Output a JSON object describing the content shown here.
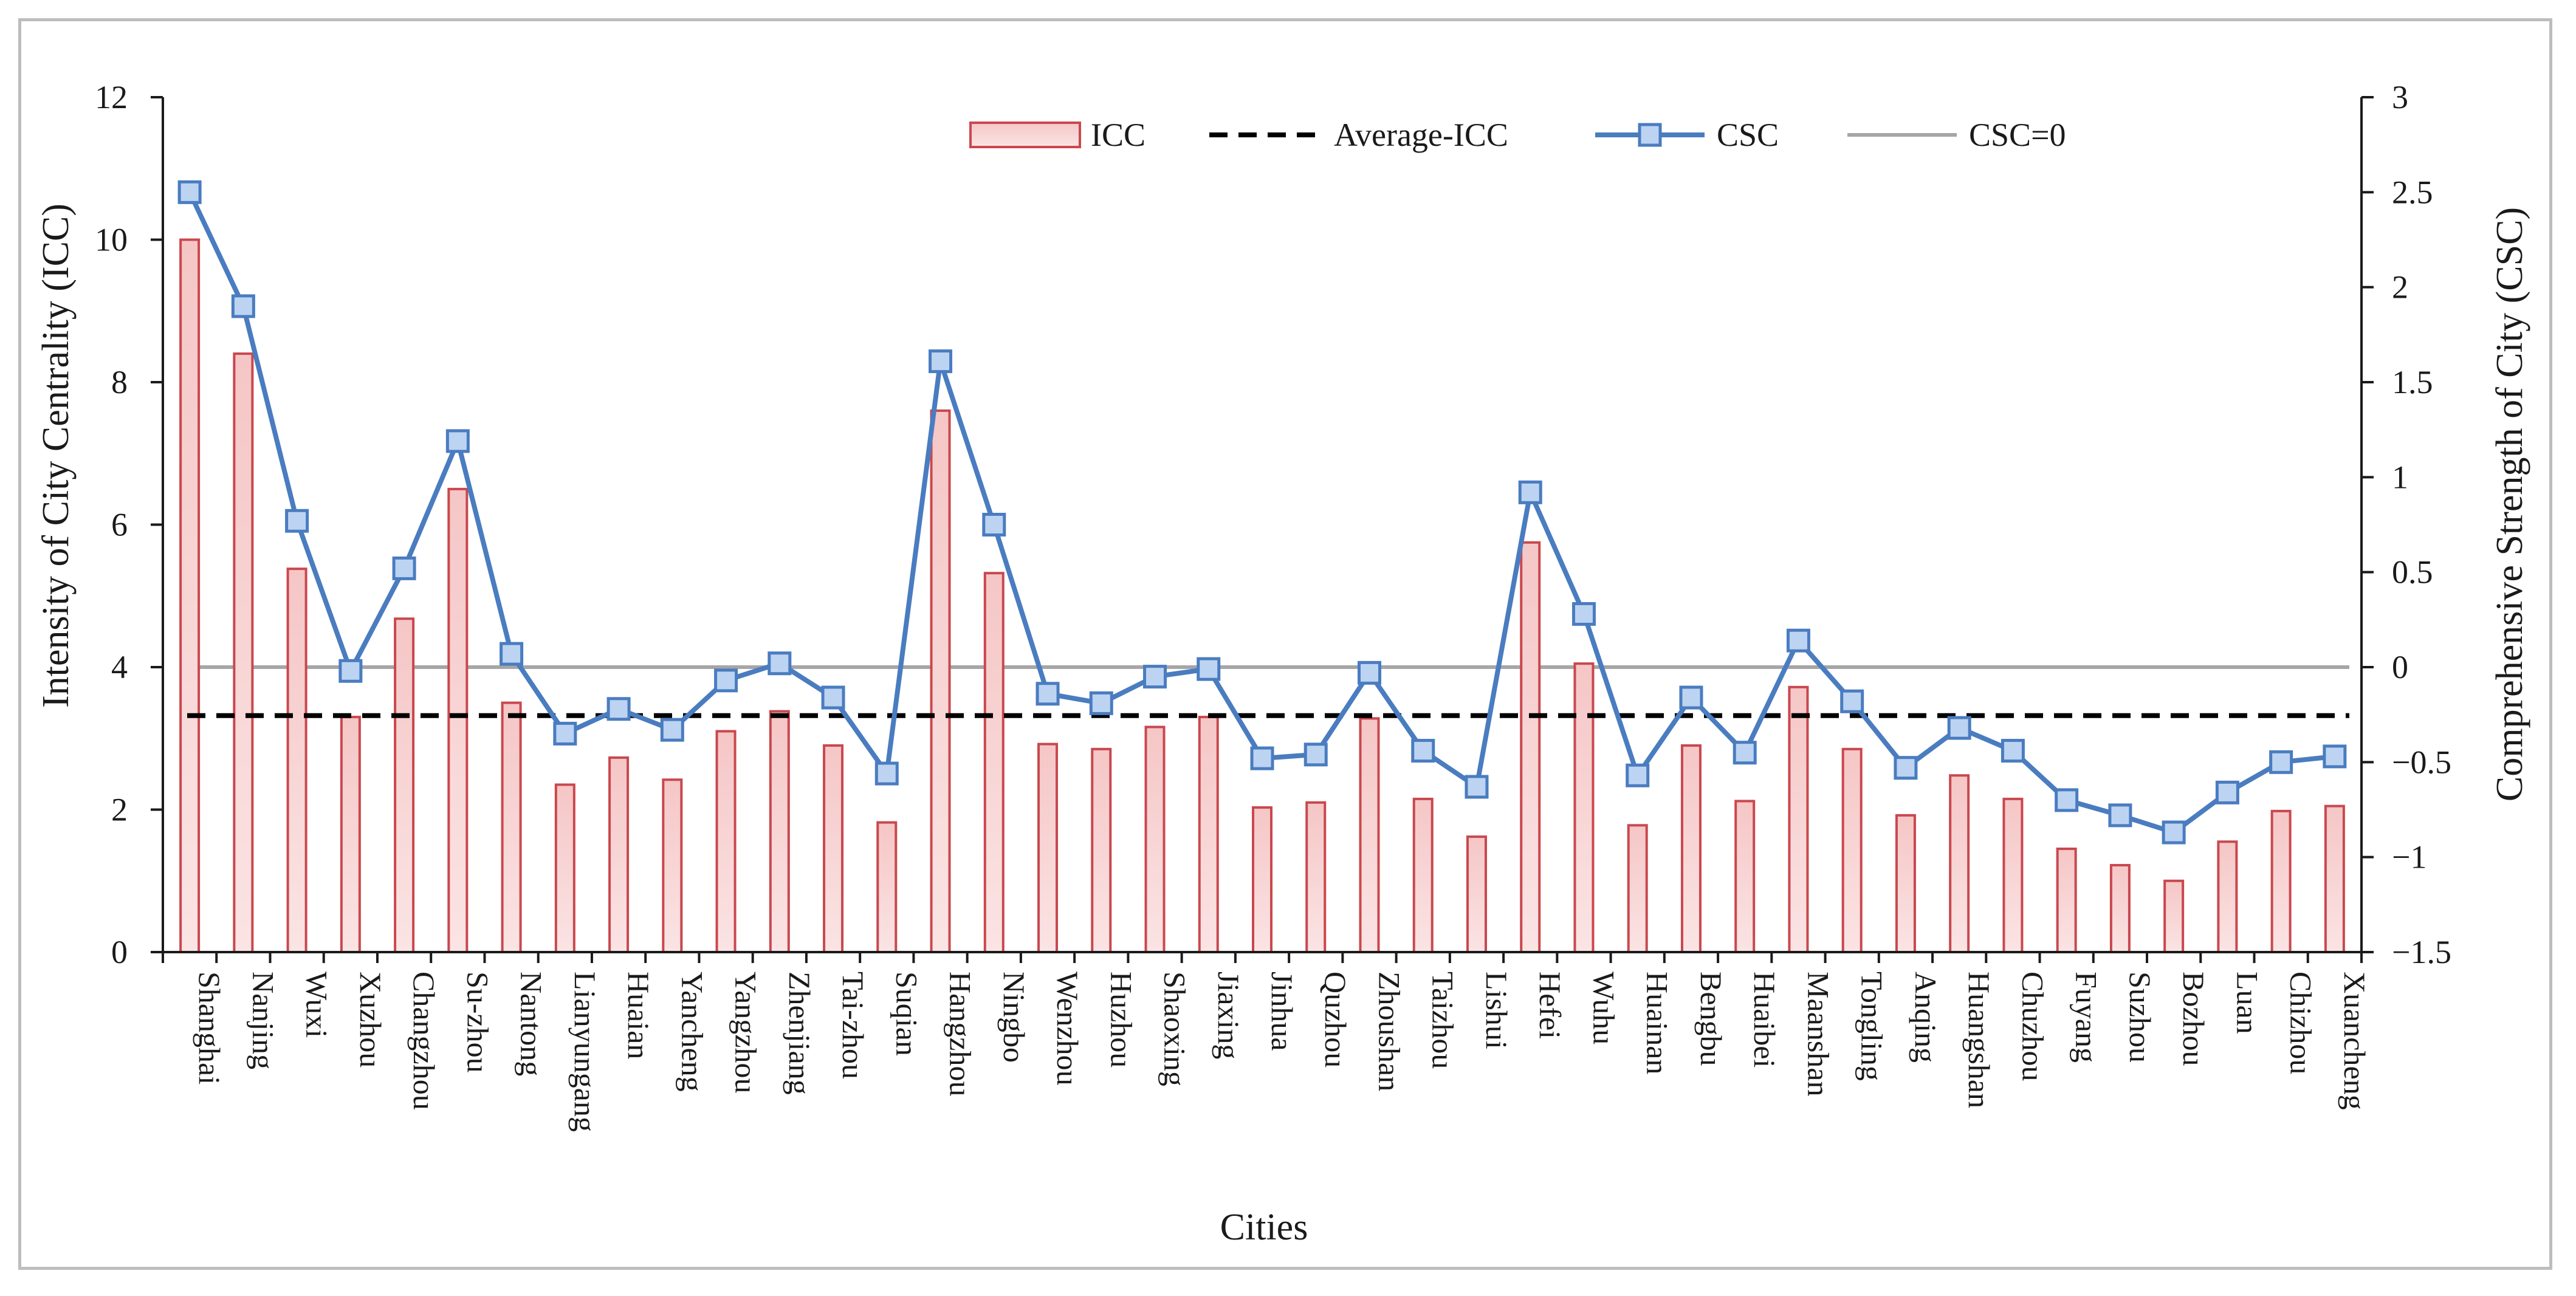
{
  "chart_data": {
    "type": "bar",
    "xlabel": "Cities",
    "ylabel": "Intensity of City Centrality (ICC)",
    "y2label": "Comprehensive Strength of City (CSC)",
    "ylim": [
      0,
      12
    ],
    "y2lim": [
      -1.5,
      3
    ],
    "yticks": [
      "0",
      "2",
      "4",
      "6",
      "8",
      "10",
      "12"
    ],
    "y2ticks": [
      "−1.5",
      "−1",
      "−0.5",
      "0",
      "0.5",
      "1",
      "1.5",
      "2",
      "2.5",
      "3"
    ],
    "y2tick_values": [
      -1.5,
      -1,
      -0.5,
      0,
      0.5,
      1,
      1.5,
      2,
      2.5,
      3
    ],
    "categories": [
      "Shanghai",
      "Nanjing",
      "Wuxi",
      "Xuzhou",
      "Changzhou",
      "Su-zhou",
      "Nantong",
      "Lianyungang",
      "Huaian",
      "Yancheng",
      "Yangzhou",
      "Zhenjiang",
      "Tai-zhou",
      "Suqian",
      "Hangzhou",
      "Ningbo",
      "Wenzhou",
      "Huzhou",
      "Shaoxing",
      "Jiaxing",
      "Jinhua",
      "Quzhou",
      "Zhoushan",
      "Taizhou",
      "Lishui",
      "Hefei",
      "Wuhu",
      "Huainan",
      "Bengbu",
      "Huaibei",
      "Maanshan",
      "Tongling",
      "Anqing",
      "Huangshan",
      "Chuzhou",
      "Fuyang",
      "Suzhou",
      "Bozhou",
      "Luan",
      "Chizhou",
      "Xuancheng"
    ],
    "series": [
      {
        "name": "ICC",
        "type": "bar",
        "axis": "left",
        "values": [
          10.0,
          8.4,
          5.38,
          3.3,
          4.68,
          6.5,
          3.5,
          2.35,
          2.73,
          2.42,
          3.1,
          3.38,
          2.9,
          1.82,
          7.6,
          5.32,
          2.92,
          2.85,
          3.16,
          3.3,
          2.03,
          2.1,
          3.28,
          2.15,
          1.62,
          5.75,
          4.05,
          1.78,
          2.9,
          2.12,
          3.72,
          2.85,
          1.92,
          2.48,
          2.15,
          1.45,
          1.22,
          1.0,
          1.55,
          1.98,
          2.05
        ]
      },
      {
        "name": "CSC",
        "type": "line",
        "axis": "right",
        "values": [
          2.5,
          1.9,
          0.77,
          -0.02,
          0.52,
          1.19,
          0.07,
          -0.35,
          -0.22,
          -0.33,
          -0.07,
          0.02,
          -0.16,
          -0.56,
          1.61,
          0.75,
          -0.14,
          -0.19,
          -0.05,
          -0.01,
          -0.48,
          -0.46,
          -0.03,
          -0.44,
          -0.63,
          0.92,
          0.28,
          -0.57,
          -0.16,
          -0.45,
          0.14,
          -0.18,
          -0.53,
          -0.32,
          -0.44,
          -0.7,
          -0.78,
          -0.87,
          -0.66,
          -0.5,
          -0.47
        ]
      }
    ],
    "average_icc": 3.32,
    "csc_zero": 0,
    "legend": {
      "icc": "ICC",
      "average": "Average-ICC",
      "csc": "CSC",
      "csc_zero": "CSC=0",
      "position": "top"
    },
    "colors": {
      "bar_fill_top": "#f5c6c6",
      "bar_fill_bottom": "#fbe4e4",
      "bar_stroke": "#c9484e",
      "csc_line": "#4a7cc0",
      "csc_marker_fill": "#bcd4f2",
      "average_line": "#000000",
      "zero_line": "#a6a6a6",
      "axis": "#1a1a1a"
    }
  }
}
